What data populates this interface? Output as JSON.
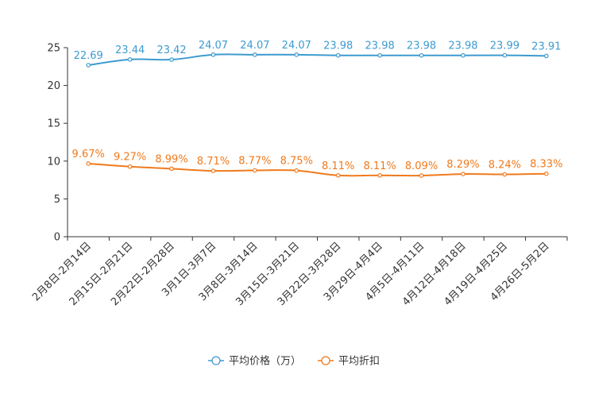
{
  "chart_data": {
    "type": "line",
    "title": "",
    "xlabel": "",
    "ylabel": "",
    "ylim": [
      0,
      25
    ],
    "yticks": [
      0,
      5,
      10,
      15,
      20,
      25
    ],
    "grid": false,
    "legend_position": "bottom-center",
    "categories": [
      "2月8日-2月14日",
      "2月15日-2月21日",
      "2月22日-2月28日",
      "3月1日-3月7日",
      "3月8日-3月14日",
      "3月15日-3月21日",
      "3月22日-3月28日",
      "3月29日-4月4日",
      "4月5日-4月11日",
      "4月12日-4月18日",
      "4月19日-4月25日",
      "4月26日-5月2日"
    ],
    "series": [
      {
        "name": "平均价格（万）",
        "color": "#3d9bd0",
        "values": [
          22.69,
          23.44,
          23.42,
          24.07,
          24.07,
          24.07,
          23.98,
          23.98,
          23.98,
          23.98,
          23.99,
          23.91
        ],
        "labels": [
          "22.69",
          "23.44",
          "23.42",
          "24.07",
          "24.07",
          "24.07",
          "23.98",
          "23.98",
          "23.98",
          "23.98",
          "23.99",
          "23.91"
        ]
      },
      {
        "name": "平均折扣",
        "color": "#f07a1d",
        "values": [
          9.67,
          9.27,
          8.99,
          8.71,
          8.77,
          8.75,
          8.11,
          8.11,
          8.09,
          8.29,
          8.24,
          8.33
        ],
        "labels": [
          "9.67%",
          "9.27%",
          "8.99%",
          "8.71%",
          "8.77%",
          "8.75%",
          "8.11%",
          "8.11%",
          "8.09%",
          "8.29%",
          "8.24%",
          "8.33%"
        ]
      }
    ]
  }
}
